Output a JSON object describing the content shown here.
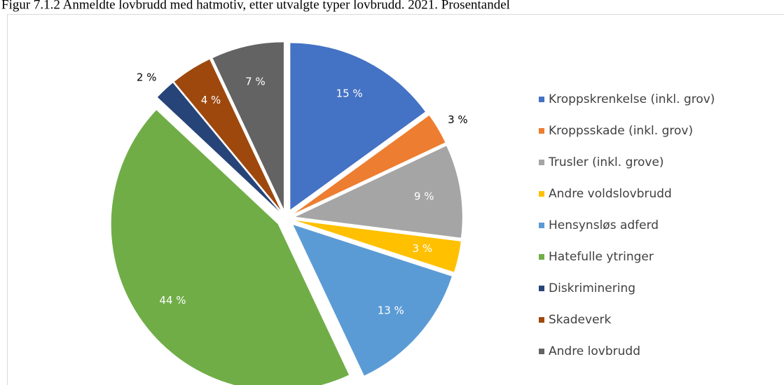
{
  "chart_data": {
    "type": "pie",
    "title": "Figur 7.1.2 Anmeldte lovbrudd med hatmotiv, etter utvalgte typer lovbrudd. 2021. Prosentandel",
    "categories": [
      "Kroppskrenkelse (inkl. grov)",
      "Kroppsskade (inkl. grov)",
      "Trusler (inkl. grove)",
      "Andre voldslovbrudd",
      "Hensynsløs adferd",
      "Hatefulle ytringer",
      "Diskriminering",
      "Skadeverk",
      "Andre lovbrudd"
    ],
    "values": [
      15,
      3,
      9,
      3,
      13,
      44,
      2,
      4,
      7
    ],
    "value_labels": [
      "15 %",
      "3 %",
      "9 %",
      "3 %",
      "13 %",
      "44 %",
      "2 %",
      "4 %",
      "7 %"
    ],
    "colors": [
      "#4472c4",
      "#ed7d31",
      "#a5a5a5",
      "#ffc000",
      "#5b9bd5",
      "#70ad47",
      "#264478",
      "#9e480e",
      "#636363"
    ],
    "legend": "right"
  }
}
